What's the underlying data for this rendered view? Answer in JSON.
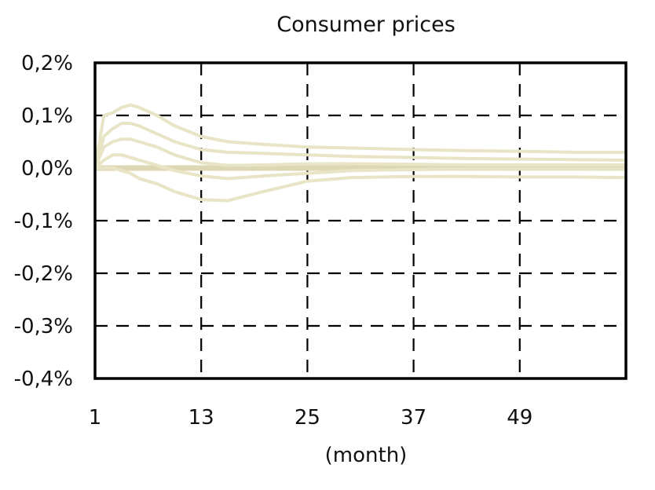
{
  "chart_data": {
    "type": "line",
    "title": "Consumer prices",
    "xlabel": "(month)",
    "ylabel": "",
    "xlim": [
      1,
      61
    ],
    "ylim": [
      -0.4,
      0.2
    ],
    "yticks": [
      0.2,
      0.1,
      0.0,
      -0.1,
      -0.2,
      -0.3,
      -0.4
    ],
    "ytick_labels": [
      "0,2%",
      "0,1%",
      "0,0%",
      "-0,1%",
      "-0,2%",
      "-0,3%",
      "-0,4%"
    ],
    "xticks": [
      1,
      13,
      25,
      37,
      49
    ],
    "xtick_labels": [
      "1",
      "13",
      "25",
      "37",
      "49"
    ],
    "grid": true,
    "colors": {
      "series": "#e8e4c6",
      "zero_line": "#ddd7b3",
      "grid": "#000000",
      "frame": "#000000"
    },
    "series": [
      {
        "x": [
          1,
          2,
          3,
          4,
          5,
          6,
          8,
          10,
          13,
          16,
          20,
          25,
          30,
          37,
          43,
          49,
          55,
          61
        ],
        "values": [
          0.0,
          0.1,
          0.105,
          0.115,
          0.12,
          0.115,
          0.1,
          0.08,
          0.06,
          0.05,
          0.045,
          0.04,
          0.038,
          0.035,
          0.033,
          0.032,
          0.03,
          0.03
        ]
      },
      {
        "x": [
          1,
          2,
          3,
          4,
          5,
          6,
          8,
          10,
          13,
          16,
          20,
          25,
          30,
          37,
          43,
          49,
          55,
          61
        ],
        "values": [
          0.0,
          0.06,
          0.075,
          0.085,
          0.085,
          0.08,
          0.065,
          0.05,
          0.035,
          0.03,
          0.028,
          0.025,
          0.022,
          0.02,
          0.018,
          0.017,
          0.016,
          0.015
        ]
      },
      {
        "x": [
          1,
          2,
          3,
          4,
          5,
          6,
          8,
          10,
          13,
          16,
          20,
          25,
          30,
          37,
          43,
          49,
          55,
          61
        ],
        "values": [
          0.0,
          0.04,
          0.05,
          0.055,
          0.055,
          0.05,
          0.04,
          0.025,
          0.01,
          0.005,
          0.006,
          0.008,
          0.008,
          0.007,
          0.006,
          0.006,
          0.006,
          0.006
        ]
      },
      {
        "x": [
          1,
          2,
          3,
          4,
          5,
          6,
          8,
          10,
          13,
          16,
          20,
          25,
          30,
          37,
          43,
          49,
          55,
          61
        ],
        "values": [
          0.0,
          0.015,
          0.025,
          0.025,
          0.02,
          0.015,
          0.005,
          -0.005,
          -0.015,
          -0.02,
          -0.015,
          -0.01,
          -0.005,
          -0.003,
          -0.002,
          -0.002,
          -0.002,
          -0.002
        ]
      },
      {
        "x": [
          1,
          2,
          3,
          4,
          5,
          6,
          8,
          10,
          13,
          16,
          20,
          25,
          30,
          37,
          43,
          49,
          55,
          61
        ],
        "values": [
          0.0,
          0.0,
          0.0,
          -0.005,
          -0.01,
          -0.02,
          -0.03,
          -0.045,
          -0.06,
          -0.062,
          -0.045,
          -0.025,
          -0.018,
          -0.016,
          -0.016,
          -0.017,
          -0.017,
          -0.018
        ]
      }
    ]
  }
}
